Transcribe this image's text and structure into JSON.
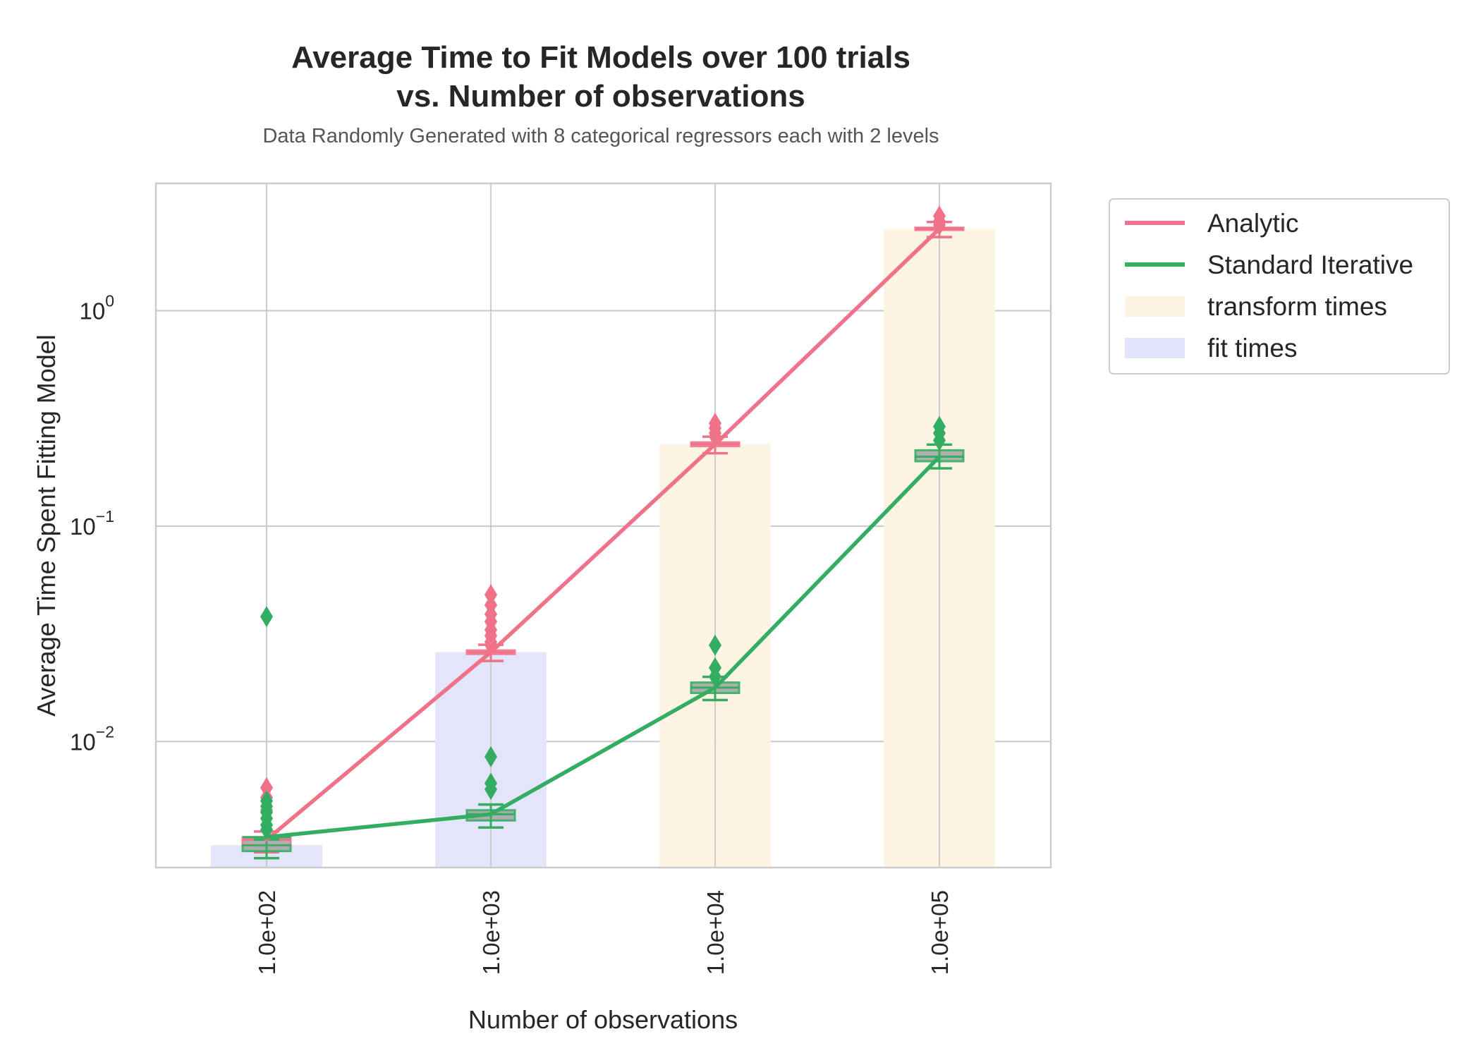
{
  "chart_data": {
    "type": "line",
    "title_line1": "Average Time to Fit Models over 100 trials",
    "title_line2": "vs. Number of observations",
    "subtitle": "Data Randomly Generated with 8 categorical regressors each with 2 levels",
    "xlabel": "Number of observations",
    "ylabel": "Average Time Spent Fitting Model",
    "yscale": "log",
    "ylim": [
      0.0026,
      3.9
    ],
    "grid": true,
    "legend_position": "outside-right",
    "categories": [
      "1.0e+02",
      "1.0e+03",
      "1.0e+04",
      "1.0e+05"
    ],
    "y_ticks": [
      {
        "base": "10",
        "exp": "0",
        "value": 1
      },
      {
        "base": "10",
        "exp": "−1",
        "value": 0.1
      },
      {
        "base": "10",
        "exp": "−2",
        "value": 0.01
      }
    ],
    "series": [
      {
        "name": "Analytic",
        "kind": "line",
        "color": "#f07289",
        "values": [
          0.0035,
          0.026,
          0.24,
          2.4
        ],
        "outliers": [
          [
            0.0061,
            0.0055,
            0.0048
          ],
          [
            0.048,
            0.043,
            0.039,
            0.036,
            0.033,
            0.031,
            0.029,
            0.028
          ],
          [
            0.3,
            0.285,
            0.27,
            0.26
          ],
          [
            2.75,
            2.6,
            2.5
          ]
        ],
        "box_low": [
          0.0033,
          0.0255,
          0.235,
          2.37
        ],
        "box_high": [
          0.0036,
          0.0265,
          0.245,
          2.43
        ]
      },
      {
        "name": "Standard Iterative",
        "kind": "line",
        "color": "#33ad62",
        "values": [
          0.0036,
          0.0046,
          0.0178,
          0.21
        ],
        "outliers": [
          [
            0.038,
            0.0053,
            0.005,
            0.0047,
            0.0044,
            0.0041,
            0.0039
          ],
          [
            0.0085,
            0.0064,
            0.006
          ],
          [
            0.028,
            0.022,
            0.02
          ],
          [
            0.29,
            0.27,
            0.25
          ]
        ],
        "box_low": [
          0.0031,
          0.0043,
          0.0168,
          0.2
        ],
        "box_high": [
          0.0033,
          0.0048,
          0.0188,
          0.225
        ]
      },
      {
        "name": "transform times",
        "kind": "bar",
        "color": "#fdf3e3",
        "values": [
          0.0033,
          0.025,
          0.24,
          2.4
        ]
      },
      {
        "name": "fit times",
        "kind": "bar",
        "color": "#e3e3fb",
        "values": [
          0.0033,
          0.026,
          0.0,
          0.0
        ]
      }
    ]
  }
}
